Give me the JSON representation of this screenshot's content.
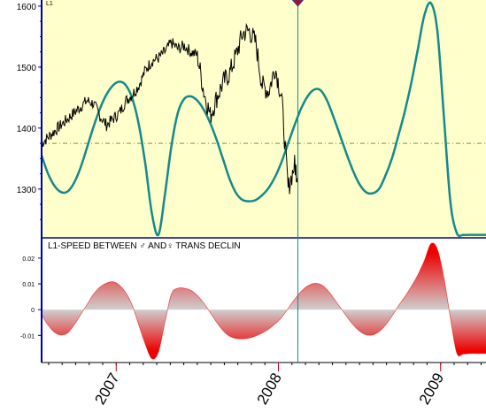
{
  "colors": {
    "upper_bg": "#ffffcc",
    "lower_bg": "#ffffff",
    "axis": "#0000aa",
    "wave": "#138a8a",
    "price": "#000000",
    "dashed_level": "#7a9a2a",
    "cursor": "#138a8a",
    "marker": "#cc0000",
    "fill_center": "#cfcfcf",
    "fill_extreme": "#ee0000"
  },
  "chart_data": [
    {
      "type": "line",
      "title": "L1",
      "x_range": [
        2006.54,
        2009.28
      ],
      "ylim": [
        1220,
        1610
      ],
      "y_ticks": [
        1300,
        1400,
        1500,
        1600
      ],
      "y_tick_labels": [
        "1300",
        "1400",
        "1500",
        "1600"
      ],
      "reference_level": 1375,
      "cursor_x": 2008.12,
      "series": [
        {
          "kind": "price",
          "x": [
            2006.54,
            2006.58,
            2006.62,
            2006.66,
            2006.7,
            2006.74,
            2006.78,
            2006.82,
            2006.86,
            2006.9,
            2006.94,
            2006.98,
            2007.02,
            2007.06,
            2007.1,
            2007.14,
            2007.18,
            2007.22,
            2007.26,
            2007.3,
            2007.34,
            2007.38,
            2007.42,
            2007.46,
            2007.5,
            2007.54,
            2007.58,
            2007.62,
            2007.66,
            2007.7,
            2007.74,
            2007.78,
            2007.82,
            2007.86,
            2007.9,
            2007.94,
            2007.98,
            2008.02,
            2008.06,
            2008.1,
            2008.12
          ],
          "y": [
            1375,
            1385,
            1395,
            1405,
            1415,
            1425,
            1435,
            1445,
            1440,
            1420,
            1405,
            1415,
            1425,
            1445,
            1455,
            1470,
            1495,
            1510,
            1515,
            1525,
            1540,
            1530,
            1535,
            1525,
            1520,
            1460,
            1420,
            1450,
            1475,
            1490,
            1520,
            1555,
            1560,
            1540,
            1470,
            1460,
            1500,
            1450,
            1300,
            1340,
            1320
          ]
        },
        {
          "kind": "wave",
          "x": [
            2006.54,
            2006.58,
            2006.62,
            2006.66,
            2006.7,
            2006.74,
            2006.78,
            2006.82,
            2006.86,
            2006.9,
            2006.94,
            2006.98,
            2007.02,
            2007.06,
            2007.1,
            2007.14,
            2007.18,
            2007.22,
            2007.26,
            2007.3,
            2007.34,
            2007.38,
            2007.42,
            2007.46,
            2007.5,
            2007.54,
            2007.58,
            2007.62,
            2007.66,
            2007.7,
            2007.74,
            2007.78,
            2007.82,
            2007.86,
            2007.9,
            2007.94,
            2007.98,
            2008.02,
            2008.06,
            2008.1,
            2008.14,
            2008.18,
            2008.22,
            2008.26,
            2008.3,
            2008.34,
            2008.38,
            2008.42,
            2008.46,
            2008.5,
            2008.54,
            2008.58,
            2008.62,
            2008.66,
            2008.7,
            2008.74,
            2008.78,
            2008.82,
            2008.86,
            2008.9,
            2008.94,
            2008.98,
            2009.02,
            2009.06,
            2009.1,
            2009.14,
            2009.18,
            2009.22,
            2009.26,
            2009.28
          ],
          "y": [
            1355,
            1325,
            1305,
            1295,
            1296,
            1310,
            1335,
            1368,
            1402,
            1432,
            1455,
            1470,
            1476,
            1470,
            1448,
            1405,
            1340,
            1260,
            1225,
            1290,
            1370,
            1425,
            1448,
            1452,
            1445,
            1430,
            1408,
            1380,
            1348,
            1316,
            1293,
            1282,
            1280,
            1282,
            1290,
            1302,
            1320,
            1345,
            1375,
            1405,
            1432,
            1452,
            1463,
            1462,
            1445,
            1418,
            1388,
            1358,
            1330,
            1308,
            1295,
            1293,
            1300,
            1322,
            1350,
            1388,
            1428,
            1475,
            1530,
            1585,
            1605,
            1560,
            1420,
            1280,
            1228,
            1225,
            1225,
            1225,
            1225,
            1225
          ]
        }
      ]
    },
    {
      "type": "area",
      "title": "L1-SPEED BETWEEN ♂ AND♀ TRANS DECLIN",
      "ylim": [
        -0.0205,
        0.0275
      ],
      "y_ticks": [
        -0.01,
        0,
        0.01,
        0.02
      ],
      "y_tick_labels": [
        "-0.01",
        "0",
        "0.01",
        "0.02"
      ],
      "x_tick_labels": [
        "2007",
        "2008",
        "2009"
      ],
      "x_ticks": [
        2007,
        2008,
        2009
      ],
      "series": [
        {
          "kind": "speed",
          "x": [
            2006.54,
            2006.58,
            2006.62,
            2006.66,
            2006.7,
            2006.74,
            2006.78,
            2006.82,
            2006.86,
            2006.9,
            2006.94,
            2006.98,
            2007.02,
            2007.06,
            2007.1,
            2007.14,
            2007.18,
            2007.22,
            2007.26,
            2007.3,
            2007.34,
            2007.38,
            2007.42,
            2007.46,
            2007.5,
            2007.54,
            2007.58,
            2007.62,
            2007.66,
            2007.7,
            2007.74,
            2007.78,
            2007.82,
            2007.86,
            2007.9,
            2007.94,
            2007.98,
            2008.02,
            2008.06,
            2008.1,
            2008.14,
            2008.18,
            2008.22,
            2008.26,
            2008.3,
            2008.34,
            2008.38,
            2008.42,
            2008.46,
            2008.5,
            2008.54,
            2008.58,
            2008.62,
            2008.66,
            2008.7,
            2008.74,
            2008.78,
            2008.82,
            2008.86,
            2008.9,
            2008.94,
            2008.98,
            2009.02,
            2009.06,
            2009.1,
            2009.14,
            2009.18,
            2009.22,
            2009.26,
            2009.28
          ],
          "y": [
            -0.002,
            -0.006,
            -0.0088,
            -0.0098,
            -0.009,
            -0.006,
            -0.002,
            0.002,
            0.006,
            0.0088,
            0.0103,
            0.0108,
            0.0095,
            0.0065,
            0.0015,
            -0.006,
            -0.0135,
            -0.019,
            -0.0165,
            -0.005,
            0.006,
            0.0083,
            0.0083,
            0.0075,
            0.0055,
            0.0025,
            -0.0012,
            -0.005,
            -0.0082,
            -0.0103,
            -0.0112,
            -0.0113,
            -0.011,
            -0.0102,
            -0.009,
            -0.0075,
            -0.0055,
            -0.003,
            0.0005,
            0.004,
            0.007,
            0.0092,
            0.0102,
            0.0098,
            0.0078,
            0.0045,
            0.001,
            -0.0025,
            -0.0058,
            -0.0083,
            -0.0097,
            -0.0098,
            -0.0085,
            -0.006,
            -0.0025,
            0.0015,
            0.005,
            0.009,
            0.0135,
            0.019,
            0.0255,
            0.0235,
            0.0125,
            -0.003,
            -0.0168,
            -0.0172,
            -0.017,
            -0.017,
            -0.017,
            -0.017
          ]
        }
      ]
    }
  ]
}
